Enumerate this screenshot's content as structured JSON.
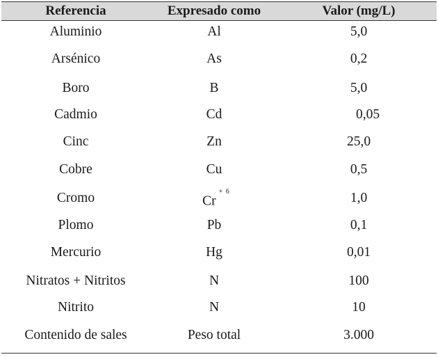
{
  "header": {
    "col1": "Referencia",
    "col2": "Expresado como",
    "col3": "Valor (mg/L)"
  },
  "rows": [
    {
      "ref": "Aluminio",
      "expr": "Al",
      "val": "5,0"
    },
    {
      "ref": "Arsénico",
      "expr": "As",
      "val": "0,2"
    },
    {
      "ref": "Boro",
      "expr": "B",
      "val": "5,0"
    },
    {
      "ref": "Cadmio",
      "expr": "Cd",
      "val": "0,05"
    },
    {
      "ref": "Cinc",
      "expr": "Zn",
      "val": "25,0"
    },
    {
      "ref": "Cobre",
      "expr": "Cu",
      "val": "0,5"
    },
    {
      "ref": "Cromo",
      "expr": "Cr",
      "expr_sup": "+ 6",
      "val": "1,0"
    },
    {
      "ref": "Plomo",
      "expr": "Pb",
      "val": "0,1"
    },
    {
      "ref": "Mercurio",
      "expr": "Hg",
      "val": "0,01"
    },
    {
      "ref": "Nitratos + Nitritos",
      "expr": "N",
      "val": "100"
    },
    {
      "ref": "Nitrito",
      "expr": "N",
      "val": "10"
    },
    {
      "ref": "Contenido de sales",
      "expr": "Peso total",
      "val": "3.000"
    }
  ]
}
